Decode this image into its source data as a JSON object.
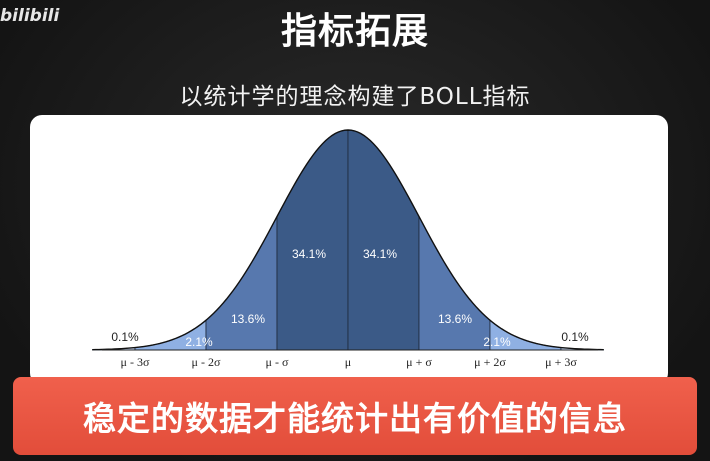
{
  "header": {
    "logo_text": "bilibili",
    "title": "指标拓展",
    "subtitle": "以统计学的理念构建了BOLL指标"
  },
  "banner": {
    "text": "稳定的数据才能统计出有价值的信息"
  },
  "colors": {
    "dark": "#3b5a87",
    "mid": "#5778ae",
    "light": "#8fb0e3",
    "lightest": "#c9dbf5",
    "banner": "#e8533f"
  },
  "chart_data": {
    "type": "area",
    "title": "",
    "distribution": "normal",
    "xlim": [
      -3.6,
      3.6
    ],
    "bands": [
      {
        "from": -3.6,
        "to": -3,
        "value": "0.1%",
        "shade": "lightest"
      },
      {
        "from": -3,
        "to": -2,
        "value": "2.1%",
        "shade": "light"
      },
      {
        "from": -2,
        "to": -1,
        "value": "13.6%",
        "shade": "mid"
      },
      {
        "from": -1,
        "to": 0,
        "value": "34.1%",
        "shade": "dark"
      },
      {
        "from": 0,
        "to": 1,
        "value": "34.1%",
        "shade": "dark"
      },
      {
        "from": 1,
        "to": 2,
        "value": "13.6%",
        "shade": "mid"
      },
      {
        "from": 2,
        "to": 3,
        "value": "2.1%",
        "shade": "light"
      },
      {
        "from": 3,
        "to": 3.6,
        "value": "0.1%",
        "shade": "lightest"
      }
    ],
    "ticks": [
      {
        "x": -3,
        "label": "μ - 3σ"
      },
      {
        "x": -2,
        "label": "μ - 2σ"
      },
      {
        "x": -1,
        "label": "μ - σ"
      },
      {
        "x": 0,
        "label": "μ"
      },
      {
        "x": 1,
        "label": "μ + σ"
      },
      {
        "x": 2,
        "label": "μ + 2σ"
      },
      {
        "x": 3,
        "label": "μ + 3σ"
      }
    ]
  }
}
